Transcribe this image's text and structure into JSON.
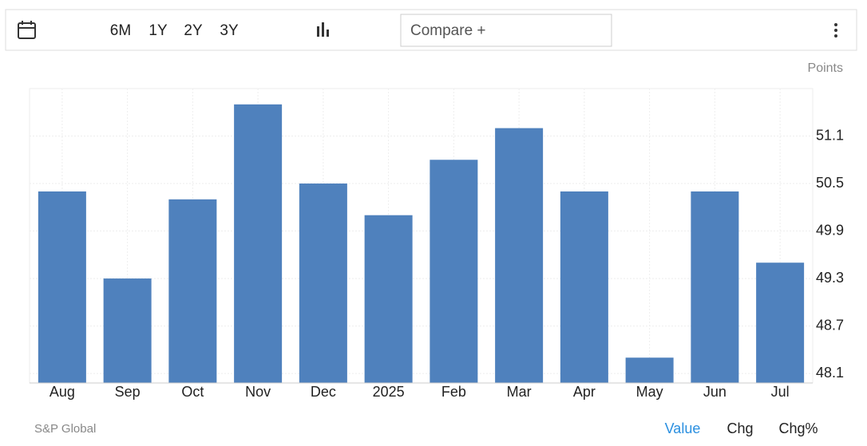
{
  "toolbar": {
    "ranges": [
      "6M",
      "1Y",
      "2Y",
      "3Y"
    ],
    "compare": "Compare +"
  },
  "chart_data": {
    "type": "bar",
    "unit": "Points",
    "categories": [
      "Aug",
      "Sep",
      "Oct",
      "Nov",
      "Dec",
      "2025",
      "Feb",
      "Mar",
      "Apr",
      "May",
      "Jun",
      "Jul"
    ],
    "values": [
      50.4,
      49.3,
      50.3,
      51.5,
      50.5,
      50.1,
      50.8,
      51.2,
      50.4,
      48.3,
      50.4,
      49.5
    ],
    "color": "#4f81bd",
    "ylim": [
      47.98,
      51.7
    ],
    "yticks": [
      48.1,
      48.7,
      49.3,
      49.9,
      50.5,
      51.1
    ],
    "grid": true,
    "source": "S&P Global"
  },
  "footer": {
    "tabs": [
      "Value",
      "Chg",
      "Chg%"
    ]
  }
}
